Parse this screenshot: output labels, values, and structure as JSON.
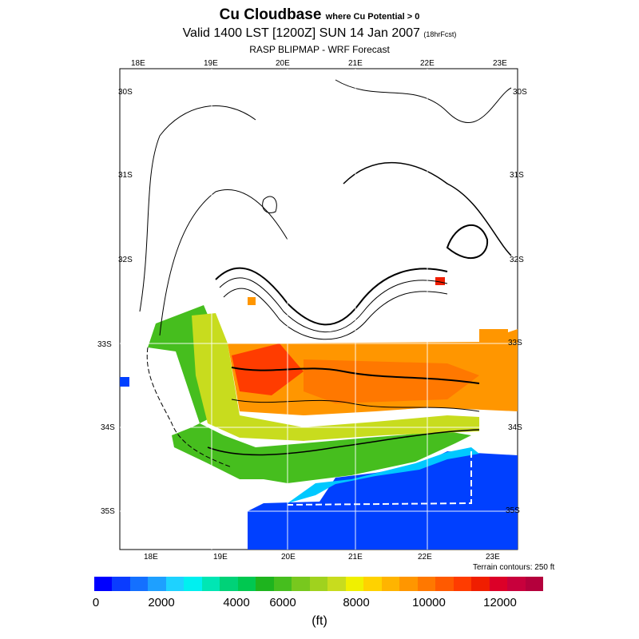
{
  "title": {
    "main": "Cu Cloudbase",
    "main_sub": "where Cu Potential > 0",
    "valid": "Valid 1400 LST [1200Z] SUN 14 Jan 2007",
    "valid_sub": "(18hrFcst)",
    "model": "RASP BLIPMAP - WRF Forecast"
  },
  "map": {
    "top_lon_labels": [
      "18E",
      "19E",
      "20E",
      "21E",
      "22E",
      "23E"
    ],
    "bottom_lon_labels": [
      "18E",
      "19E",
      "20E",
      "21E",
      "22E",
      "23E"
    ],
    "left_lat_labels": [
      "30S",
      "31S",
      "32S",
      "33S",
      "34S",
      "35S"
    ],
    "right_lat_labels": [
      "30S",
      "31S",
      "32S",
      "33S",
      "34S",
      "35S"
    ],
    "terrain_note": "Terrain contours: 250 ft"
  },
  "colorbar": {
    "labels": [
      "0",
      "2000",
      "4000",
      "6000",
      "8000",
      "10000",
      "12000"
    ],
    "unit": "(ft)",
    "colors": [
      "#0000ff",
      "#0a3cff",
      "#1470ff",
      "#1ea0ff",
      "#1ed2ff",
      "#00f0f0",
      "#00e6b4",
      "#00d278",
      "#00c850",
      "#1eb41e",
      "#46be1e",
      "#78c81e",
      "#a0d21e",
      "#c8dc1e",
      "#f0f000",
      "#ffd200",
      "#ffb400",
      "#ff9600",
      "#ff7800",
      "#ff5a00",
      "#ff3c00",
      "#f01e00",
      "#dc0028",
      "#c8003c",
      "#b4003c"
    ]
  }
}
